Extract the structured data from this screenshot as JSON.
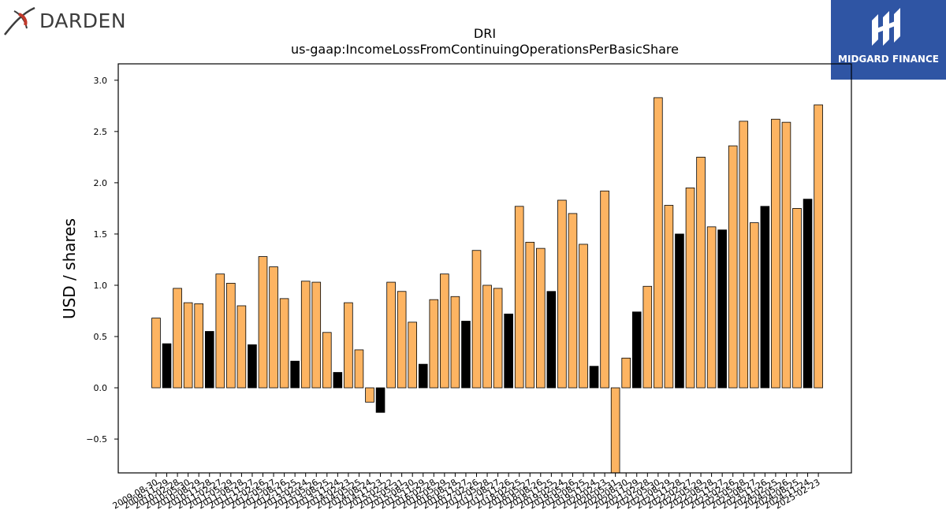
{
  "branding": {
    "left_logo_text": "DARDEN",
    "left_logo_color": "#c0392b",
    "right_logo_text": "MIDGARD FINANCE",
    "right_logo_color": "#2f55a4"
  },
  "chart_data": {
    "type": "bar",
    "title": "DRI",
    "subtitle": "us-gaap:IncomeLossFromContinuingOperationsPerBasicShare",
    "xlabel": "",
    "ylabel": "USD / shares",
    "ylim": [
      -0.83,
      3.16
    ],
    "yticks": [
      -0.5,
      0.0,
      0.5,
      1.0,
      1.5,
      2.0,
      2.5,
      3.0
    ],
    "ytick_labels": [
      "−0.5",
      "0.0",
      "0.5",
      "1.0",
      "1.5",
      "2.0",
      "2.5",
      "3.0"
    ],
    "grid": false,
    "colors": {
      "quarterly": "#fdb462",
      "annual": "#000000",
      "edge": "#000000"
    },
    "categories": [
      "2009-08-30",
      "2009-11-29",
      "2010-02-28",
      "2010-05-30",
      "2010-08-29",
      "2010-11-28",
      "2011-02-27",
      "2011-05-29",
      "2011-08-28",
      "2011-11-27",
      "2012-02-26",
      "2012-05-27",
      "2012-08-26",
      "2012-11-25",
      "2013-02-24",
      "2013-05-26",
      "2013-08-25",
      "2013-11-24",
      "2014-02-23",
      "2014-05-25",
      "2014-08-24",
      "2014-11-23",
      "2015-02-22",
      "2015-05-31",
      "2015-08-30",
      "2015-11-29",
      "2016-02-28",
      "2016-05-29",
      "2016-08-28",
      "2016-11-27",
      "2017-02-26",
      "2017-05-28",
      "2017-08-27",
      "2017-11-26",
      "2018-02-25",
      "2018-05-27",
      "2018-08-26",
      "2018-11-25",
      "2019-02-24",
      "2019-05-26",
      "2019-08-25",
      "2019-11-24",
      "2020-02-23",
      "2020-05-31",
      "2020-08-30",
      "2020-11-29",
      "2021-02-28",
      "2021-05-30",
      "2021-08-29",
      "2021-11-28",
      "2022-02-27",
      "2022-05-29",
      "2022-08-28",
      "2022-11-27",
      "2023-02-26",
      "2023-05-28",
      "2023-08-27",
      "2023-11-26",
      "2024-02-25",
      "2024-05-26",
      "2024-08-25",
      "2024-11-24",
      "2025-02-23"
    ],
    "values": [
      0.68,
      0.43,
      0.97,
      0.83,
      0.82,
      0.55,
      1.11,
      1.02,
      0.8,
      0.42,
      1.28,
      1.18,
      0.87,
      0.26,
      1.04,
      1.03,
      0.54,
      0.15,
      0.83,
      0.37,
      -0.14,
      -0.24,
      1.03,
      0.94,
      0.64,
      0.23,
      0.86,
      1.11,
      0.89,
      0.65,
      1.34,
      1.0,
      0.97,
      0.72,
      1.77,
      1.42,
      1.36,
      0.94,
      1.83,
      1.7,
      1.4,
      0.21,
      1.92,
      -0.9,
      0.29,
      0.74,
      0.99,
      2.83,
      1.78,
      1.5,
      1.95,
      2.25,
      1.57,
      1.54,
      2.36,
      2.6,
      1.61,
      1.77,
      2.62,
      2.59,
      1.75,
      1.84,
      2.76
    ],
    "annual_flags": [
      false,
      true,
      false,
      false,
      false,
      true,
      false,
      false,
      false,
      true,
      false,
      false,
      false,
      true,
      false,
      false,
      false,
      true,
      false,
      false,
      false,
      true,
      false,
      false,
      false,
      true,
      false,
      false,
      false,
      true,
      false,
      false,
      false,
      true,
      false,
      false,
      false,
      true,
      false,
      false,
      false,
      true,
      false,
      false,
      false,
      true,
      false,
      false,
      false,
      true,
      false,
      false,
      false,
      true,
      false,
      false,
      false,
      true,
      false,
      false,
      false,
      true,
      false
    ]
  }
}
